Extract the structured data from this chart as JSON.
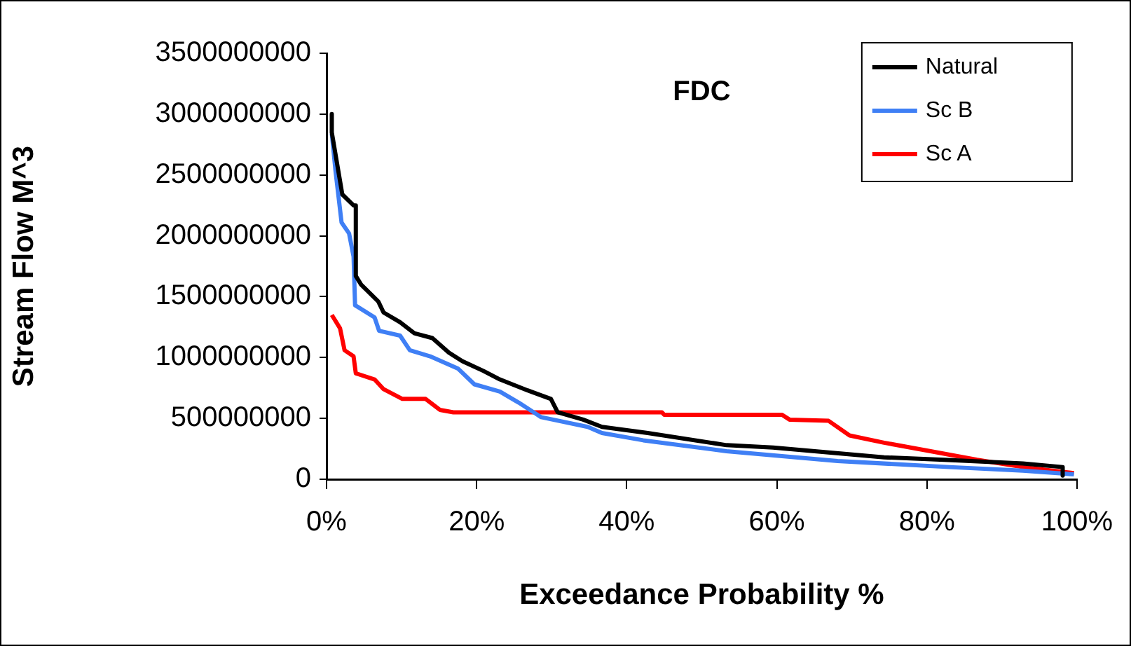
{
  "chart_data": {
    "type": "line",
    "title": "FDC",
    "xlabel": "Exceedance Probability %",
    "ylabel": "Stream Flow M^3",
    "xlim": [
      0,
      100
    ],
    "xticks": [
      {
        "value": 0,
        "label": "0%"
      },
      {
        "value": 20,
        "label": "20%"
      },
      {
        "value": 40,
        "label": "40%"
      },
      {
        "value": 60,
        "label": "60%"
      },
      {
        "value": 80,
        "label": "80%"
      },
      {
        "value": 100,
        "label": "100%"
      }
    ],
    "ylim": [
      0,
      3500000000
    ],
    "yticks": [
      0,
      500000000,
      1000000000,
      1500000000,
      2000000000,
      2500000000,
      3000000000,
      3500000000
    ],
    "grid": false,
    "legend": "top right",
    "marker": "none",
    "line_style": "solid",
    "series": [
      {
        "name": "Natural",
        "color": "#000000",
        "x": [
          0.7,
          0.7,
          2.1,
          3.6,
          3.9,
          3.9,
          4.6,
          6.9,
          7.6,
          9.8,
          11.7,
          14.1,
          16.3,
          18.1,
          20.9,
          23.1,
          26.8,
          29.9,
          30.8,
          34.2,
          36.7,
          42.8,
          53.3,
          59.5,
          74.3,
          82.3,
          92.8,
          98.1,
          98.1
        ],
        "values": [
          3000000000,
          2850000000,
          2340000000,
          2250000000,
          2250000000,
          1670000000,
          1600000000,
          1460000000,
          1370000000,
          1290000000,
          1200000000,
          1160000000,
          1040000000,
          970000000,
          890000000,
          820000000,
          730000000,
          660000000,
          550000000,
          490000000,
          430000000,
          380000000,
          280000000,
          260000000,
          180000000,
          160000000,
          130000000,
          100000000,
          30000000
        ]
      },
      {
        "name": "Sc B",
        "color": "#3f7ff5",
        "x": [
          0.7,
          1.2,
          2.0,
          3.0,
          3.6,
          3.8,
          6.4,
          7.0,
          9.8,
          11.1,
          13.8,
          17.5,
          19.7,
          23.1,
          25.6,
          28.6,
          34.8,
          36.7,
          42.2,
          53.3,
          68.1,
          83.0,
          92.8,
          99.6
        ],
        "values": [
          2840000000,
          2530000000,
          2110000000,
          2020000000,
          1830000000,
          1430000000,
          1330000000,
          1220000000,
          1180000000,
          1060000000,
          1010000000,
          910000000,
          780000000,
          720000000,
          630000000,
          510000000,
          430000000,
          380000000,
          320000000,
          230000000,
          150000000,
          100000000,
          70000000,
          40000000
        ]
      },
      {
        "name": "Sc A",
        "color": "#ff0000",
        "x": [
          0.7,
          1.8,
          2.4,
          3.6,
          3.9,
          6.4,
          7.6,
          10.1,
          13.2,
          15.1,
          16.9,
          44.7,
          45.0,
          60.7,
          61.7,
          66.9,
          69.7,
          74.3,
          80.5,
          86.7,
          92.8,
          99.6
        ],
        "values": [
          1350000000,
          1240000000,
          1060000000,
          1010000000,
          870000000,
          820000000,
          740000000,
          660000000,
          660000000,
          570000000,
          550000000,
          550000000,
          530000000,
          530000000,
          490000000,
          480000000,
          360000000,
          300000000,
          230000000,
          160000000,
          100000000,
          50000000
        ]
      }
    ]
  }
}
